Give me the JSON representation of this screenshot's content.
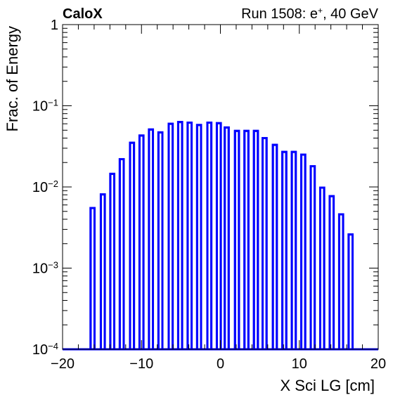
{
  "header": {
    "left_label": "CaloX",
    "right_label_prefix": "Run 1508: e",
    "right_label_sup": "+",
    "right_label_suffix": ", 40 GeV"
  },
  "chart_data": {
    "type": "bar",
    "subtype": "histogram-outline",
    "xlabel": "X Sci LG [cm]",
    "ylabel": "Frac. of Energy",
    "xlim": [
      -20,
      20
    ],
    "ylim": [
      0.0001,
      1
    ],
    "yscale": "log",
    "grid": false,
    "legend": "none",
    "x_ticks": [
      "−20",
      "−10",
      "0",
      "10",
      "20"
    ],
    "y_ticks": [
      {
        "base": "10",
        "exp": "−4"
      },
      {
        "base": "10",
        "exp": "−3"
      },
      {
        "base": "10",
        "exp": "−2"
      },
      {
        "base": "10",
        "exp": "−1"
      },
      {
        "base": "1",
        "exp": ""
      }
    ],
    "bin_width": 0.5,
    "series": [
      {
        "color": "#0000ff",
        "x": [
          -16.2,
          -14.9,
          -13.7,
          -12.5,
          -11.2,
          -10.0,
          -8.8,
          -7.6,
          -6.3,
          -5.1,
          -3.9,
          -2.7,
          -1.4,
          -0.2,
          0.8,
          2.1,
          3.3,
          4.5,
          5.6,
          6.9,
          8.1,
          9.3,
          10.5,
          11.7,
          12.9,
          14.1,
          15.3,
          16.5
        ],
        "values": [
          0.0055,
          0.0081,
          0.0145,
          0.022,
          0.035,
          0.043,
          0.051,
          0.047,
          0.06,
          0.063,
          0.062,
          0.058,
          0.062,
          0.061,
          0.054,
          0.049,
          0.049,
          0.049,
          0.04,
          0.033,
          0.027,
          0.027,
          0.025,
          0.018,
          0.0098,
          0.0077,
          0.0046,
          0.0026
        ]
      }
    ]
  }
}
